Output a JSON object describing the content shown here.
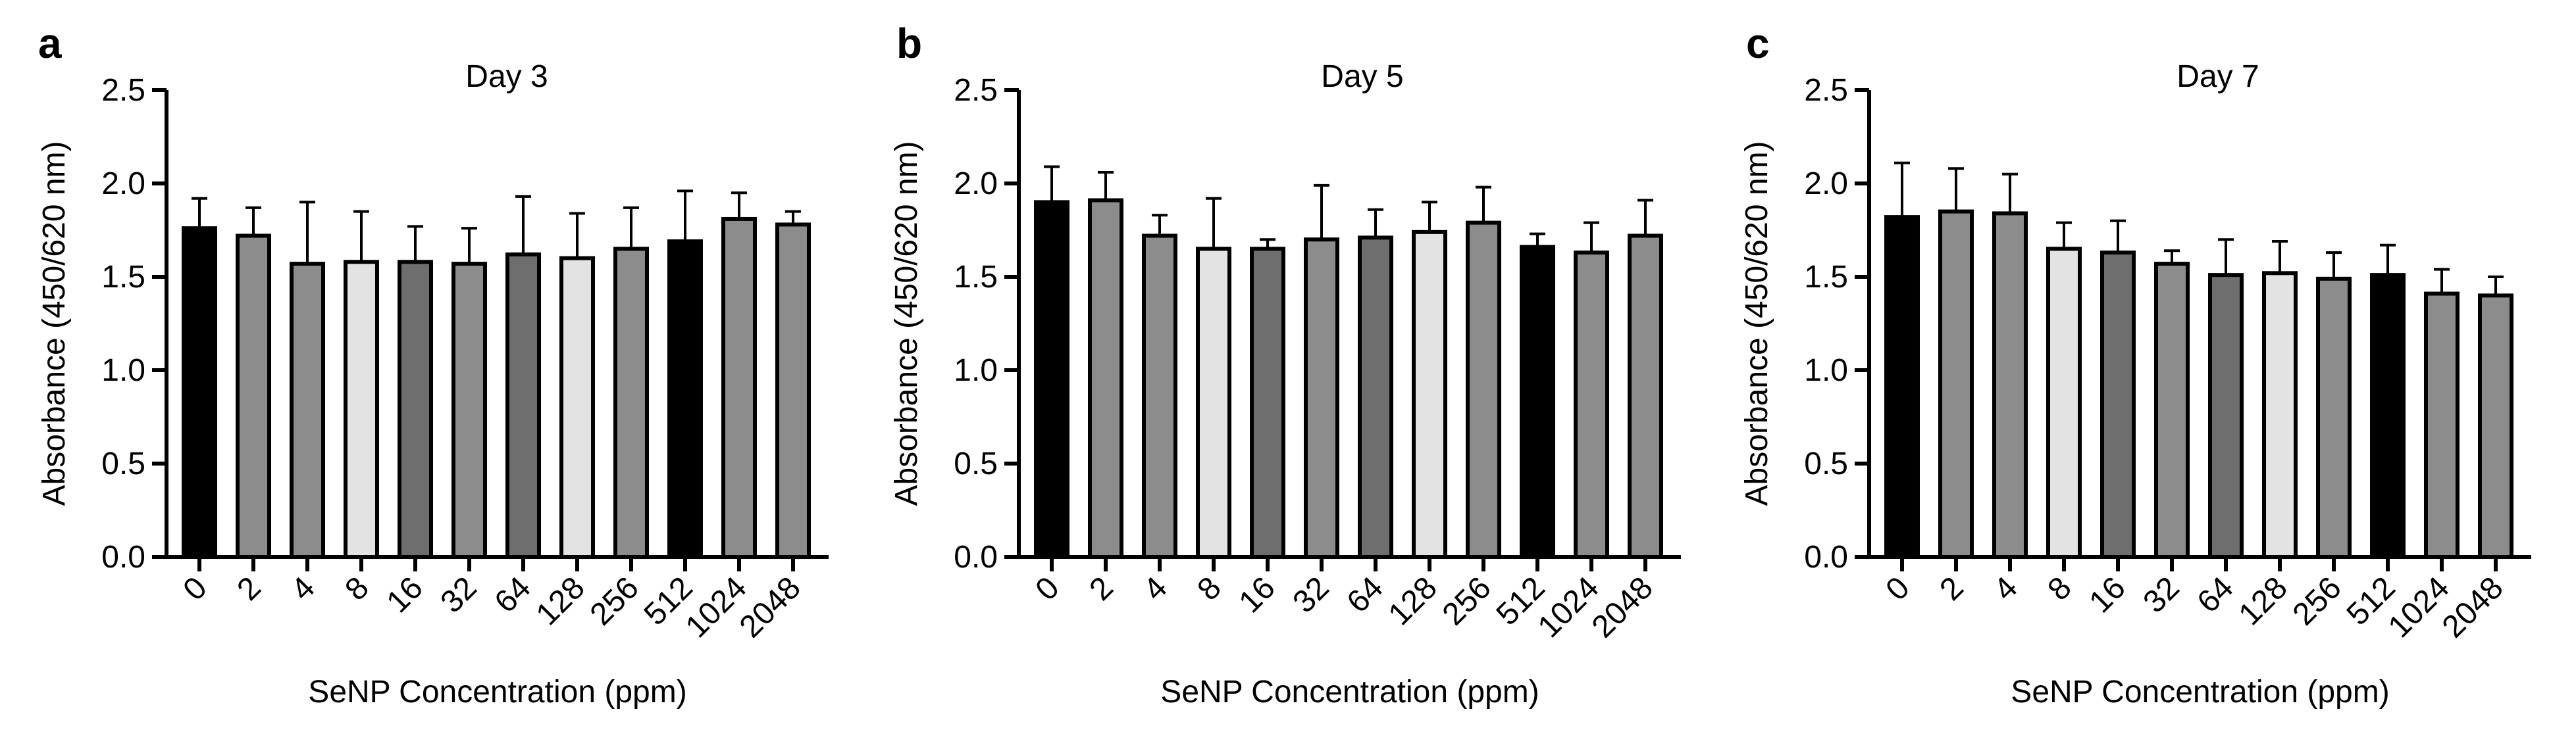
{
  "chart_data": [
    {
      "type": "bar",
      "panel": "a",
      "title": "Day 3",
      "xlabel": "SeNP Concentration (ppm)",
      "ylabel": "Absorbance (450/620 nm)",
      "ylim": [
        0,
        2.5
      ],
      "yticks": [
        "0.0",
        "0.5",
        "1.0",
        "1.5",
        "2.0",
        "2.5"
      ],
      "grid": false,
      "categories": [
        "0",
        "2",
        "4",
        "8",
        "16",
        "32",
        "64",
        "128",
        "256",
        "512",
        "1024",
        "2048"
      ],
      "values": [
        1.76,
        1.72,
        1.57,
        1.58,
        1.58,
        1.57,
        1.62,
        1.6,
        1.65,
        1.69,
        1.81,
        1.78
      ],
      "errors": [
        0.16,
        0.15,
        0.33,
        0.27,
        0.19,
        0.19,
        0.31,
        0.24,
        0.22,
        0.27,
        0.14,
        0.07
      ]
    },
    {
      "type": "bar",
      "panel": "b",
      "title": "Day 5",
      "xlabel": "SeNP Concentration (ppm)",
      "ylabel": "Absorbance (450/620 nm)",
      "ylim": [
        0,
        2.5
      ],
      "yticks": [
        "0.0",
        "0.5",
        "1.0",
        "1.5",
        "2.0",
        "2.5"
      ],
      "grid": false,
      "categories": [
        "0",
        "2",
        "4",
        "8",
        "16",
        "32",
        "64",
        "128",
        "256",
        "512",
        "1024",
        "2048"
      ],
      "values": [
        1.9,
        1.91,
        1.72,
        1.65,
        1.65,
        1.7,
        1.71,
        1.74,
        1.79,
        1.66,
        1.63,
        1.72
      ],
      "errors": [
        0.19,
        0.15,
        0.11,
        0.27,
        0.05,
        0.29,
        0.15,
        0.16,
        0.19,
        0.07,
        0.16,
        0.19
      ]
    },
    {
      "type": "bar",
      "panel": "c",
      "title": "Day 7",
      "xlabel": "SeNP Concentration (ppm)",
      "ylabel": "Absorbance (450/620 nm)",
      "ylim": [
        0,
        2.5
      ],
      "yticks": [
        "0.0",
        "0.5",
        "1.0",
        "1.5",
        "2.0",
        "2.5"
      ],
      "grid": false,
      "categories": [
        "0",
        "2",
        "4",
        "8",
        "16",
        "32",
        "64",
        "128",
        "256",
        "512",
        "1024",
        "2048"
      ],
      "values": [
        1.82,
        1.85,
        1.84,
        1.65,
        1.63,
        1.57,
        1.51,
        1.52,
        1.49,
        1.51,
        1.41,
        1.4
      ],
      "errors": [
        0.29,
        0.23,
        0.21,
        0.14,
        0.17,
        0.07,
        0.19,
        0.17,
        0.14,
        0.16,
        0.13,
        0.1
      ]
    }
  ],
  "colors": {
    "bar_fills": [
      "#000000",
      "#8c8c8c",
      "#8c8c8c",
      "#e3e3e3",
      "#6e6e6e",
      "#8c8c8c",
      "#6e6e6e",
      "#e3e3e3",
      "#8c8c8c",
      "#000000",
      "#8c8c8c",
      "#8c8c8c"
    ],
    "stroke": "#000000"
  }
}
